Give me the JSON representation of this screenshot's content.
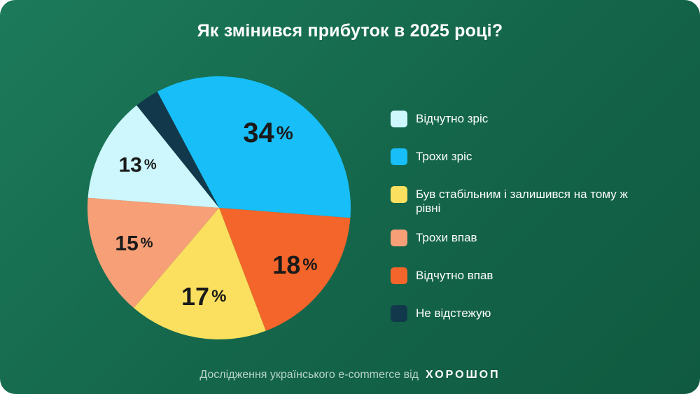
{
  "title": "Як змінився прибуток в 2025 році?",
  "footer": {
    "text": "Дослідження українського e-commerce від",
    "brand": "ХОРОШОП"
  },
  "chart_data": {
    "type": "pie",
    "title": "Як змінився прибуток в 2025 році?",
    "slices": [
      {
        "label": "Трохи зріс",
        "value": 34,
        "value_label": "34",
        "color": "#17bef7"
      },
      {
        "label": "Відчутно впав",
        "value": 18,
        "value_label": "18",
        "color": "#f3652a"
      },
      {
        "label": "Був стабільним і залишився на тому ж рівні",
        "value": 17,
        "value_label": "17",
        "color": "#fbe05f"
      },
      {
        "label": "Трохи впав",
        "value": 15,
        "value_label": "15",
        "color": "#f79f77"
      },
      {
        "label": "Відчутно зріс",
        "value": 13,
        "value_label": "13",
        "color": "#cdf7fc"
      },
      {
        "label": "Не відстежую",
        "value": 3,
        "value_label": "",
        "color": "#11394b"
      }
    ],
    "unit": "%"
  },
  "legend": [
    {
      "label": "Відчутно зріс",
      "color": "#cdf7fc"
    },
    {
      "label": "Трохи зріс",
      "color": "#17bef7"
    },
    {
      "label": "Був стабільним і залишився на тому ж рівні",
      "color": "#fbe05f"
    },
    {
      "label": "Трохи впав",
      "color": "#f79f77"
    },
    {
      "label": "Відчутно впав",
      "color": "#f3652a"
    },
    {
      "label": "Не відстежую",
      "color": "#11394b"
    }
  ]
}
